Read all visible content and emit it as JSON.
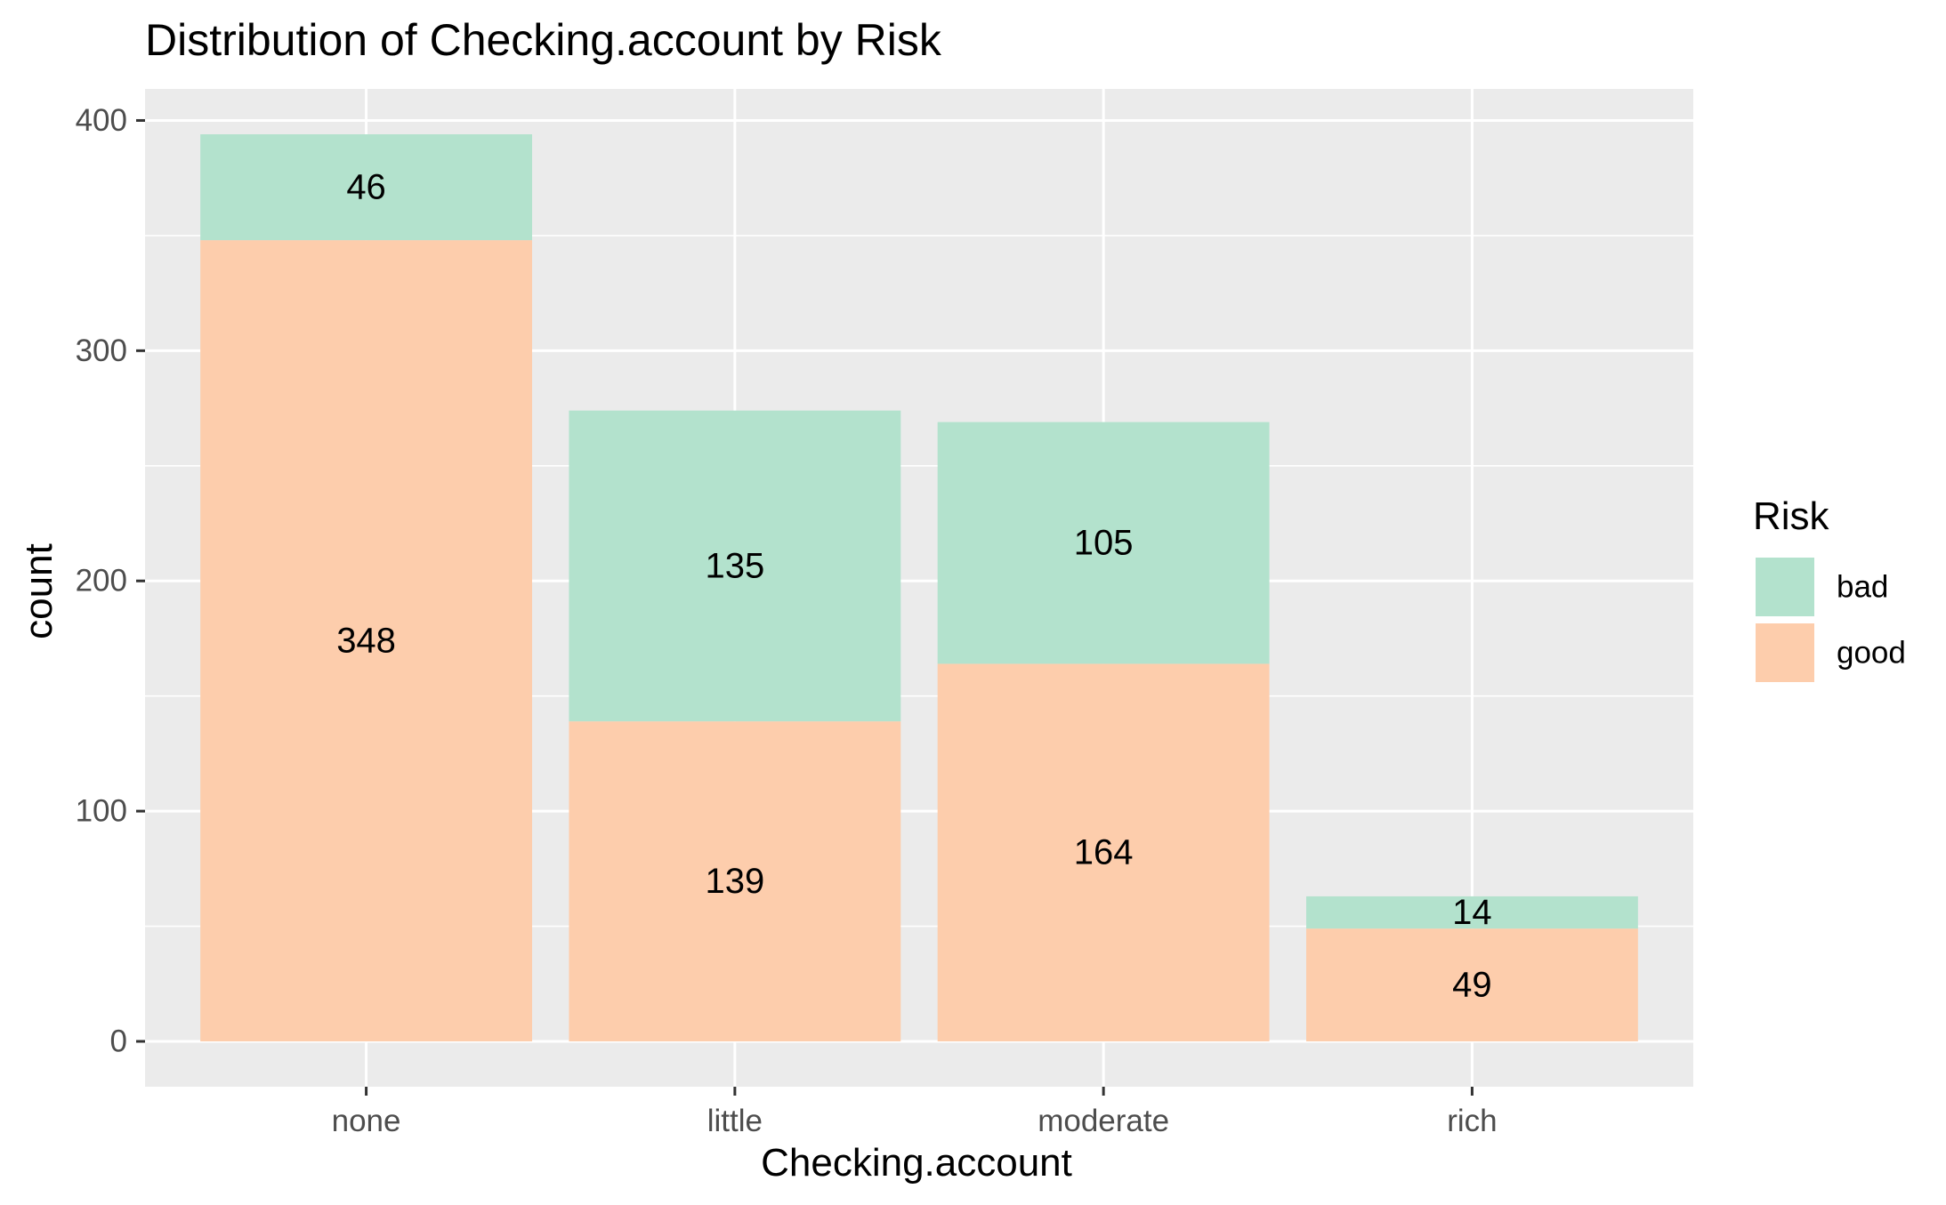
{
  "chart_data": {
    "type": "bar",
    "stacked": true,
    "title": "Distribution of Checking.account by Risk",
    "xlabel": "Checking.account",
    "ylabel": "count",
    "categories": [
      "none",
      "little",
      "moderate",
      "rich"
    ],
    "series": [
      {
        "name": "bad",
        "values": [
          46,
          135,
          105,
          14
        ],
        "color": "#B3E2CD"
      },
      {
        "name": "good",
        "values": [
          348,
          139,
          164,
          49
        ],
        "color": "#FDCDAC"
      }
    ],
    "stack_order_bottom_to_top": [
      "good",
      "bad"
    ],
    "ylim": [
      -19.7,
      413.7
    ],
    "yticks": [
      0,
      100,
      200,
      300,
      400
    ],
    "ytick_labels": [
      "0",
      "100",
      "200",
      "300",
      "400"
    ],
    "grid": true,
    "legend": {
      "title": "Risk",
      "position": "right",
      "entries": [
        "bad",
        "good"
      ]
    },
    "panel_background": "#EBEBEB",
    "grid_color": "#FFFFFF",
    "text_color": "#000000",
    "tick_label_color": "#4D4D4D"
  }
}
